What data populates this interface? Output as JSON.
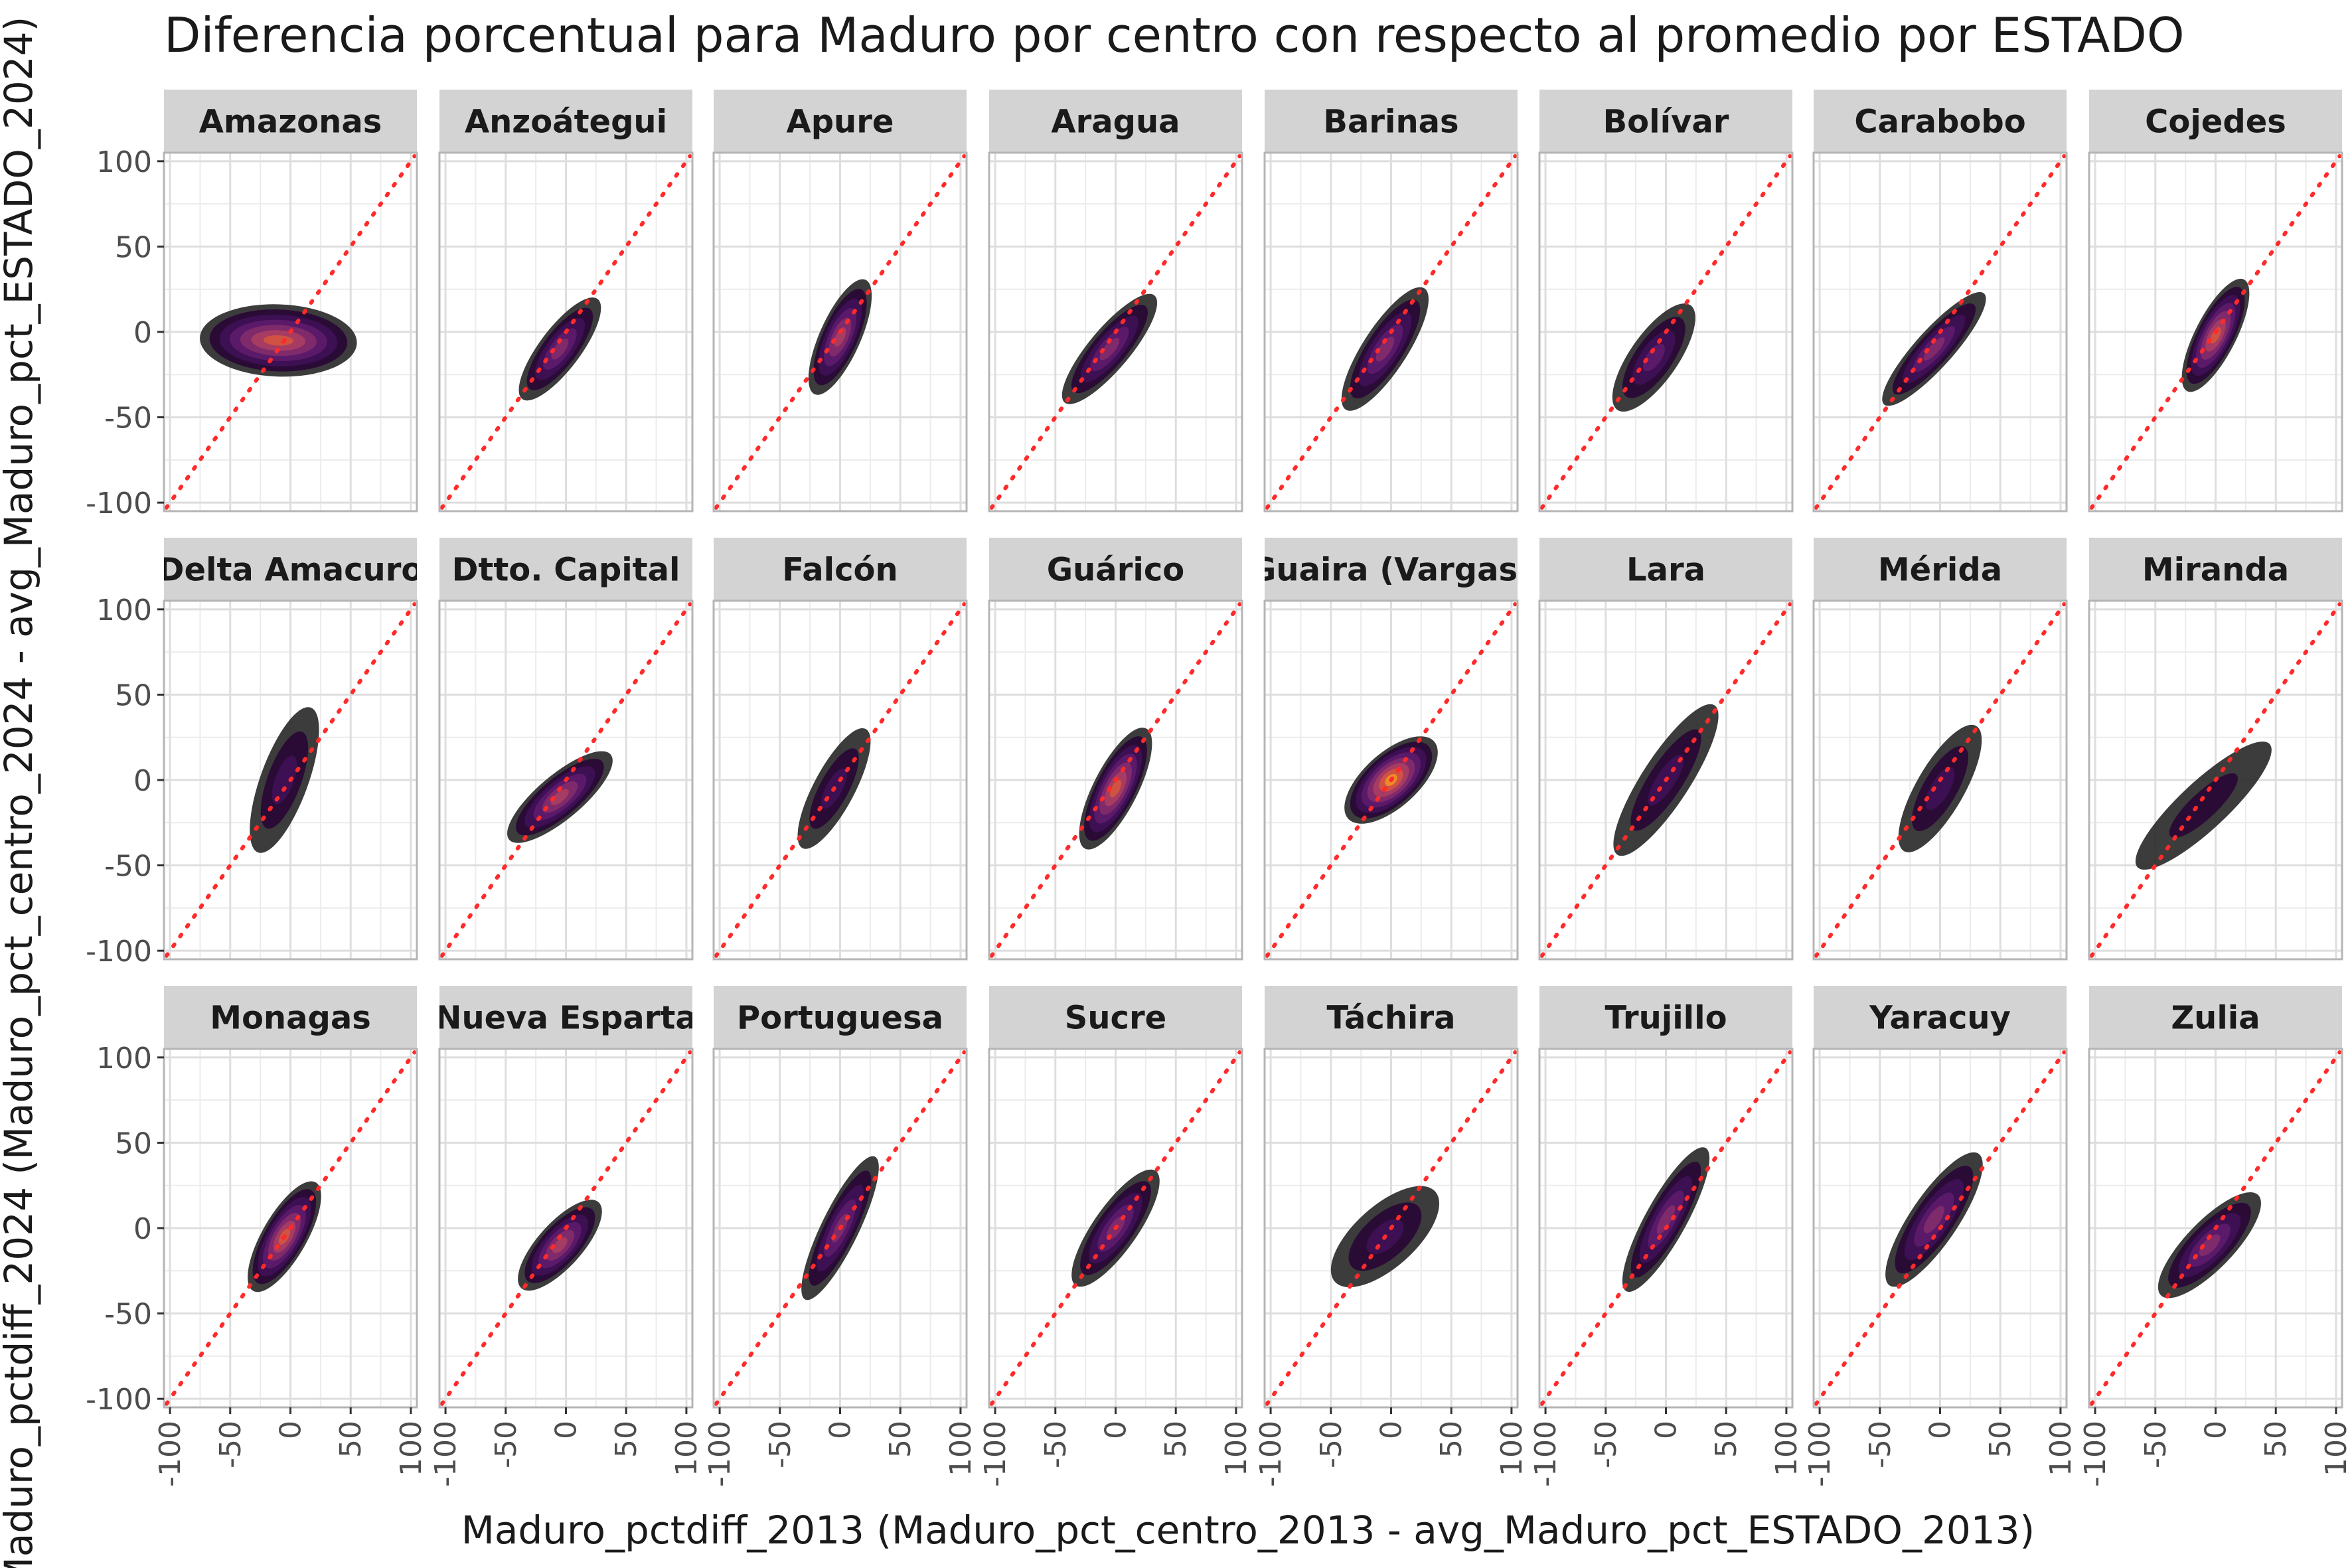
{
  "chart_data": {
    "type": "density2d-facet",
    "title": "Diferencia porcentual para Maduro por centro con respecto al promedio por ESTADO",
    "xlabel": "Maduro_pctdiff_2013 (Maduro_pct_centro_2013 - avg_Maduro_pct_ESTADO_2013)",
    "ylabel": "Maduro_pctdiff_2024 (Maduro_pct_centro_2024 - avg_Maduro_pct_ESTADO_2024)",
    "xlim": [
      -105,
      105
    ],
    "ylim": [
      -105,
      105
    ],
    "x_ticks": [
      -100,
      -50,
      0,
      50,
      100
    ],
    "y_ticks": [
      -100,
      -50,
      0,
      50,
      100
    ],
    "x_tick_labels": [
      "-100",
      "-50",
      "0",
      "50",
      "100"
    ],
    "y_tick_labels": [
      "-100",
      "-50",
      "0",
      "50",
      "100"
    ],
    "reference_line": {
      "type": "identity",
      "slope": 1,
      "intercept": 0,
      "color": "#ff2a2a",
      "style": "dotted"
    },
    "grid": true,
    "legend": "none",
    "fill_palette": [
      "#2b2b2b",
      "#2a0b36",
      "#3d0f53",
      "#5a1a69",
      "#7f2a6b",
      "#a63b63",
      "#cf5242",
      "#ee8a2a"
    ],
    "panel_background": "#ffffff",
    "strip_background": "#d3d3d3",
    "panels": [
      {
        "name": "Amazonas",
        "cx": -10,
        "cy": -5,
        "sx": 30,
        "sy": 46,
        "rot": 88,
        "levels": 7
      },
      {
        "name": "Anzoátegui",
        "cx": -5,
        "cy": -10,
        "sx": 52,
        "sy": 12,
        "rot": 53,
        "levels": 5
      },
      {
        "name": "Apure",
        "cx": 0,
        "cy": -3,
        "sx": 52,
        "sy": 12,
        "rot": 66,
        "levels": 6
      },
      {
        "name": "Aragua",
        "cx": -5,
        "cy": -10,
        "sx": 58,
        "sy": 12,
        "rot": 50,
        "levels": 5
      },
      {
        "name": "Barinas",
        "cx": -5,
        "cy": -10,
        "sx": 60,
        "sy": 13,
        "rot": 57,
        "levels": 5
      },
      {
        "name": "Bolívar",
        "cx": -10,
        "cy": -15,
        "sx": 53,
        "sy": 14,
        "rot": 55,
        "levels": 4
      },
      {
        "name": "Carabobo",
        "cx": -5,
        "cy": -10,
        "sx": 62,
        "sy": 11,
        "rot": 48,
        "levels": 5
      },
      {
        "name": "Cojedes",
        "cx": 0,
        "cy": -2,
        "sx": 52,
        "sy": 12,
        "rot": 63,
        "levels": 7
      },
      {
        "name": "Delta Amacuro",
        "cx": -5,
        "cy": 0,
        "sx": 64,
        "sy": 14,
        "rot": 70,
        "levels": 3
      },
      {
        "name": "Dtto. Capital",
        "cx": -5,
        "cy": -10,
        "sx": 55,
        "sy": 13,
        "rot": 40,
        "levels": 6
      },
      {
        "name": "Falcón",
        "cx": -5,
        "cy": -5,
        "sx": 56,
        "sy": 12,
        "rot": 62,
        "levels": 3
      },
      {
        "name": "Guárico",
        "cx": 0,
        "cy": -5,
        "sx": 56,
        "sy": 13,
        "rot": 63,
        "levels": 7
      },
      {
        "name": "Guaira (Vargas)",
        "cx": 0,
        "cy": 0,
        "sx": 48,
        "sy": 16,
        "rot": 42,
        "levels": 8
      },
      {
        "name": "Lara",
        "cx": 0,
        "cy": 0,
        "sx": 74,
        "sy": 14,
        "rot": 57,
        "levels": 3
      },
      {
        "name": "Mérida",
        "cx": 0,
        "cy": -5,
        "sx": 60,
        "sy": 14,
        "rot": 60,
        "levels": 3
      },
      {
        "name": "Miranda",
        "cx": -10,
        "cy": -15,
        "sx": 75,
        "sy": 14,
        "rot": 43,
        "levels": 2
      },
      {
        "name": "Monagas",
        "cx": -5,
        "cy": -5,
        "sx": 52,
        "sy": 13,
        "rot": 60,
        "levels": 7
      },
      {
        "name": "Nueva Esparta",
        "cx": -5,
        "cy": -10,
        "sx": 48,
        "sy": 13,
        "rot": 48,
        "levels": 6
      },
      {
        "name": "Portuguesa",
        "cx": 0,
        "cy": 0,
        "sx": 66,
        "sy": 11,
        "rot": 64,
        "levels": 5
      },
      {
        "name": "Sucre",
        "cx": 0,
        "cy": 0,
        "sx": 58,
        "sy": 13,
        "rot": 55,
        "levels": 5
      },
      {
        "name": "Táchira",
        "cx": -5,
        "cy": -5,
        "sx": 56,
        "sy": 18,
        "rot": 42,
        "levels": 3
      },
      {
        "name": "Trujillo",
        "cx": 0,
        "cy": 5,
        "sx": 68,
        "sy": 12,
        "rot": 61,
        "levels": 5
      },
      {
        "name": "Yaracuy",
        "cx": -5,
        "cy": 5,
        "sx": 66,
        "sy": 14,
        "rot": 56,
        "levels": 5
      },
      {
        "name": "Zulia",
        "cx": -5,
        "cy": -10,
        "sx": 58,
        "sy": 14,
        "rot": 46,
        "levels": 5
      }
    ]
  }
}
